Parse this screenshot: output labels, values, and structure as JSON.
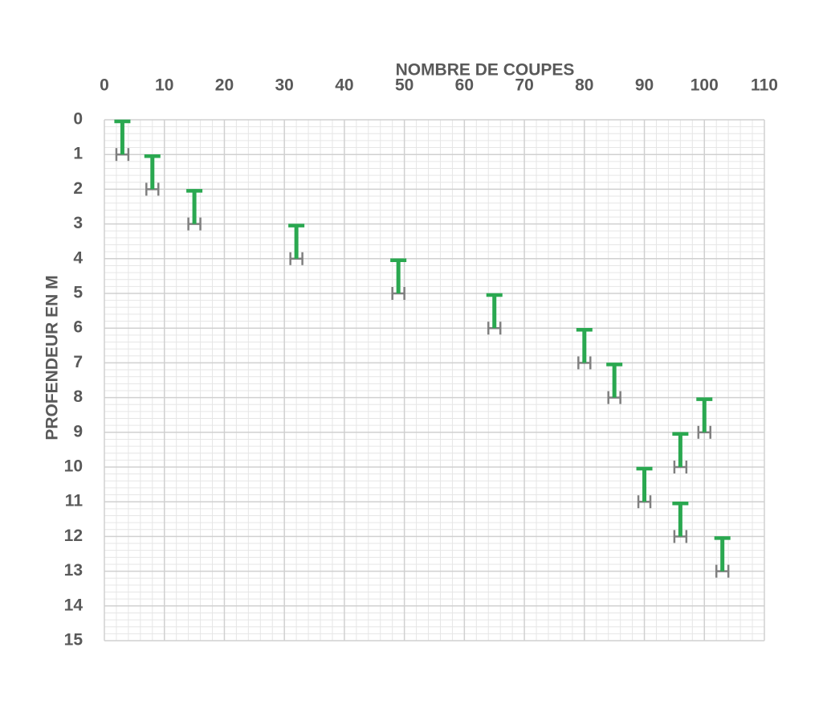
{
  "chart_data": {
    "type": "interval",
    "title": "NOMBRE DE COUPES",
    "y_label": "PROFENDEUR EN M",
    "x": [
      3,
      8,
      15,
      32,
      49,
      65,
      80,
      85,
      100,
      96,
      90,
      96,
      103
    ],
    "depth_top": [
      0,
      1,
      2,
      3,
      4,
      5,
      6,
      7,
      8,
      9,
      10,
      11,
      12
    ],
    "depth_bottom": [
      1,
      2,
      3,
      4,
      5,
      6,
      7,
      8,
      9,
      10,
      11,
      12,
      13
    ],
    "x_error": 1,
    "color": "#2aa850",
    "error_color": "#7f7f7f",
    "xlim": [
      0,
      110
    ],
    "xticks": [
      0,
      10,
      20,
      30,
      40,
      50,
      60,
      70,
      80,
      90,
      100,
      110
    ],
    "ylim": [
      0,
      15
    ],
    "yticks": [
      0,
      1,
      2,
      3,
      4,
      5,
      6,
      7,
      8,
      9,
      10,
      11,
      12,
      13,
      14,
      15
    ],
    "y_inverted": true,
    "grid": true,
    "minor_grid": true
  }
}
